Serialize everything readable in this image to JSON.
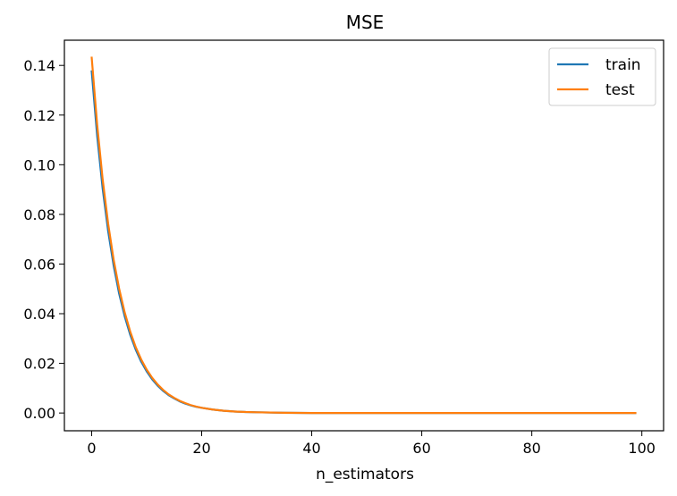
{
  "chart_data": {
    "type": "line",
    "title": "MSE",
    "xlabel": "n_estimators",
    "ylabel": "",
    "xlim": [
      -4.95,
      103.95
    ],
    "ylim": [
      -0.00715,
      0.15015
    ],
    "xticks": [
      0,
      20,
      40,
      60,
      80,
      100
    ],
    "yticks": [
      0.0,
      0.02,
      0.04,
      0.06,
      0.08,
      0.1,
      0.12,
      0.14
    ],
    "xtick_labels": [
      "0",
      "20",
      "40",
      "60",
      "80",
      "100"
    ],
    "ytick_labels": [
      "0.00",
      "0.02",
      "0.04",
      "0.06",
      "0.08",
      "0.10",
      "0.12",
      "0.14"
    ],
    "grid": false,
    "legend": {
      "placement": "top-right"
    },
    "x": [
      0,
      1,
      2,
      3,
      4,
      5,
      6,
      7,
      8,
      9,
      10,
      11,
      12,
      13,
      14,
      15,
      16,
      17,
      18,
      19,
      20,
      22,
      24,
      26,
      28,
      30,
      35,
      40,
      45,
      50,
      60,
      70,
      80,
      90,
      99
    ],
    "series": [
      {
        "name": "train",
        "color": "#1f77b4",
        "values": [
          0.138,
          0.1118,
          0.0905,
          0.0733,
          0.0594,
          0.0481,
          0.039,
          0.0316,
          0.0256,
          0.0207,
          0.0168,
          0.0136,
          0.011,
          0.0089,
          0.0072,
          0.0059,
          0.0047,
          0.0038,
          0.0031,
          0.0025,
          0.0021,
          0.0014,
          0.0009,
          0.0006,
          0.0004,
          0.0003,
          0.0001,
          0.0,
          0.0,
          0.0,
          0.0,
          0.0,
          0.0,
          0.0,
          0.0
        ]
      },
      {
        "name": "test",
        "color": "#ff7f0e",
        "values": [
          0.1435,
          0.1163,
          0.0942,
          0.0763,
          0.0618,
          0.0501,
          0.0406,
          0.0329,
          0.0266,
          0.0216,
          0.0175,
          0.0142,
          0.0115,
          0.0093,
          0.0075,
          0.0061,
          0.0049,
          0.004,
          0.0032,
          0.0026,
          0.0021,
          0.0014,
          0.0009,
          0.0006,
          0.0004,
          0.0003,
          0.0001,
          0.0,
          0.0,
          0.0,
          0.0,
          0.0,
          0.0,
          0.0,
          0.0
        ]
      }
    ]
  }
}
